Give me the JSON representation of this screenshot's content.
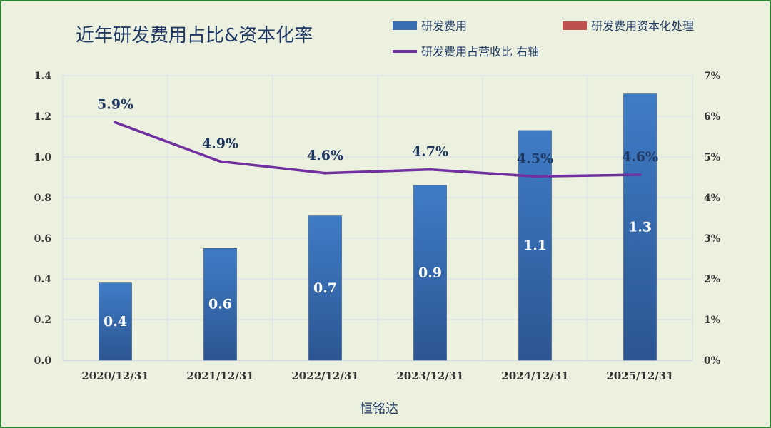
{
  "chart_data": {
    "type": "bar",
    "title": "近年研发费用占比&资本化率",
    "xlabel": "恒铭达",
    "categories": [
      "2020/12/31",
      "2021/12/31",
      "2022/12/31",
      "2023/12/31",
      "2024/12/31",
      "2025/12/31"
    ],
    "series": [
      {
        "name": "研发费用",
        "type": "bar",
        "axis": "left",
        "color": "#3a6fb4",
        "values": [
          0.38,
          0.55,
          0.71,
          0.86,
          1.13,
          1.31
        ],
        "labels": [
          "0.4",
          "0.6",
          "0.7",
          "0.9",
          "1.1",
          "1.3"
        ]
      },
      {
        "name": "研发费用资本化处理",
        "type": "bar",
        "axis": "left",
        "color": "#c0504d",
        "values": [
          0,
          0,
          0,
          0,
          0,
          0
        ]
      },
      {
        "name": "研发费用占营收比 右轴",
        "type": "line",
        "axis": "right",
        "color": "#7030a0",
        "values": [
          5.85,
          4.89,
          4.6,
          4.69,
          4.52,
          4.56
        ],
        "labels": [
          "5.9%",
          "4.9%",
          "4.6%",
          "4.7%",
          "4.5%",
          "4.6%"
        ]
      }
    ],
    "y_left": {
      "min": 0,
      "max": 1.4,
      "ticks": [
        "0.0",
        "0.2",
        "0.4",
        "0.6",
        "0.8",
        "1.0",
        "1.2",
        "1.4"
      ]
    },
    "y_right": {
      "min": 0,
      "max": 7,
      "ticks": [
        "0%",
        "1%",
        "2%",
        "3%",
        "4%",
        "5%",
        "6%",
        "7%"
      ]
    },
    "grid": true,
    "legend_position": "top-right"
  }
}
